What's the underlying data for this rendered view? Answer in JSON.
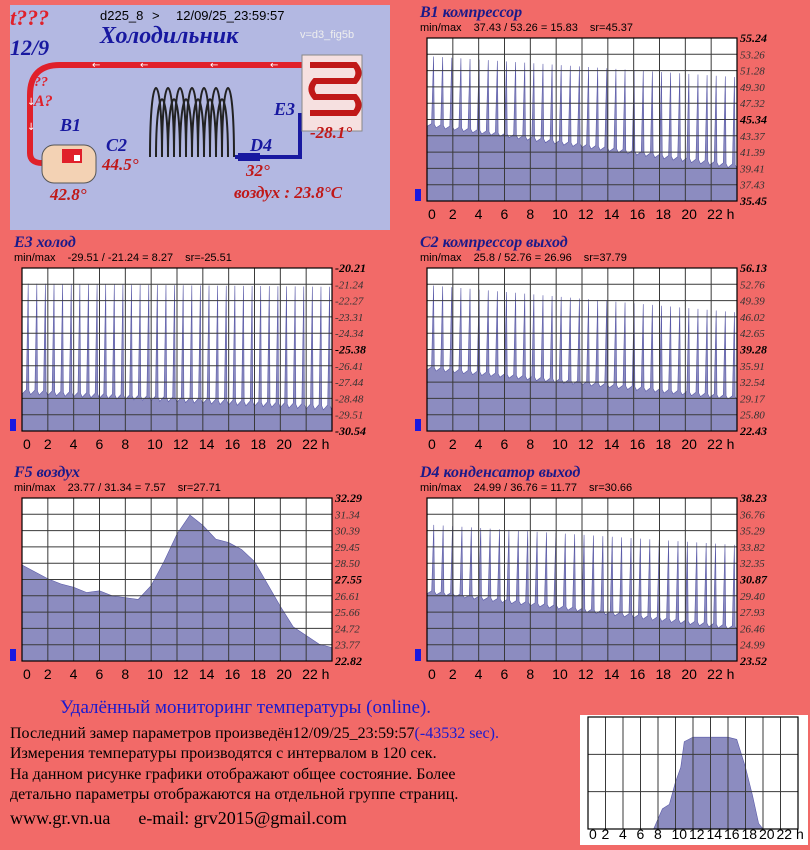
{
  "scheme": {
    "status_code": "t???",
    "date_short": "12/9",
    "device": "d225_8",
    "arrow": ">",
    "timestamp": "12/09/25_23:59:57",
    "title": "Холодильник",
    "version": "v=d3_fig5b",
    "q_marks": "??",
    "a_label": "A?",
    "b1_label": "B1",
    "b1_value": "42.8°",
    "c2_label": "C2",
    "c2_value": "44.5°",
    "d4_label": "D4",
    "d4_value": "32°",
    "e3_label": "E3",
    "e3_value": "-28.1°",
    "air_text": "воздух : 23.8°C"
  },
  "chart_data": [
    {
      "type": "area",
      "title": "B1 компрессор",
      "min_label": "min/max",
      "minmax_text": "37.43 / 53.26 = 15.83",
      "sr_text": "sr=45.37",
      "ylim": [
        35.45,
        55.24
      ],
      "y_ticks": [
        "55.24",
        "53.26",
        "51.28",
        "49.30",
        "47.32",
        "45.34",
        "43.37",
        "41.39",
        "39.41",
        "37.43",
        "35.45"
      ],
      "x_ticks": [
        "0",
        "2",
        "4",
        "6",
        "8",
        "10",
        "12",
        "14",
        "16",
        "18",
        "20",
        "22 h"
      ],
      "grid": true,
      "pattern": "cycle",
      "base_start": 44.5,
      "base_end": 39.5,
      "peak_start": 53.0,
      "peak_end": 50.5,
      "cycles": 34
    },
    {
      "type": "area",
      "title": "E3 холод",
      "min_label": "min/max",
      "minmax_text": "-29.51 / -21.24 = 8.27",
      "sr_text": "sr=-25.51",
      "ylim": [
        -30.54,
        -20.21
      ],
      "y_ticks": [
        "-20.21",
        "-21.24",
        "-22.27",
        "-23.31",
        "-24.34",
        "-25.38",
        "-26.41",
        "-27.44",
        "-28.48",
        "-29.51",
        "-30.54"
      ],
      "x_ticks": [
        "0",
        "2",
        "4",
        "6",
        "8",
        "10",
        "12",
        "14",
        "16",
        "18",
        "20",
        "22 h"
      ],
      "grid": true,
      "pattern": "cycle",
      "base_start": -28.2,
      "base_end": -29.2,
      "peak_start": -21.2,
      "peak_end": -21.4,
      "cycles": 36
    },
    {
      "type": "area",
      "title": "F5 воздух",
      "min_label": "min/max",
      "minmax_text": "23.77 / 31.34 = 7.57",
      "sr_text": "sr=27.71",
      "ylim": [
        22.82,
        32.29
      ],
      "y_ticks": [
        "32.29",
        "31.34",
        "30.39",
        "29.45",
        "28.50",
        "27.55",
        "26.61",
        "25.66",
        "24.72",
        "23.77",
        "22.82"
      ],
      "x_ticks": [
        "0",
        "2",
        "4",
        "6",
        "8",
        "10",
        "12",
        "14",
        "16",
        "18",
        "20",
        "22 h"
      ],
      "grid": true,
      "pattern": "smooth",
      "points": [
        [
          0,
          28.4
        ],
        [
          1,
          28.0
        ],
        [
          2,
          27.6
        ],
        [
          3,
          27.3
        ],
        [
          4,
          27.1
        ],
        [
          5,
          26.8
        ],
        [
          6,
          26.9
        ],
        [
          7,
          26.6
        ],
        [
          8,
          26.5
        ],
        [
          9,
          26.4
        ],
        [
          10,
          27.2
        ],
        [
          11,
          28.6
        ],
        [
          12,
          30.2
        ],
        [
          13,
          31.3
        ],
        [
          14,
          30.7
        ],
        [
          15,
          29.9
        ],
        [
          16,
          29.7
        ],
        [
          17,
          29.3
        ],
        [
          18,
          28.6
        ],
        [
          19,
          27.3
        ],
        [
          20,
          26.0
        ],
        [
          21,
          24.8
        ],
        [
          22,
          24.3
        ],
        [
          23,
          23.8
        ],
        [
          23.98,
          23.6
        ]
      ]
    },
    {
      "type": "area",
      "title": "C2 компрессор выход",
      "min_label": "min/max",
      "minmax_text": "25.8 / 52.76 = 26.96",
      "sr_text": "sr=37.79",
      "ylim": [
        22.43,
        56.13
      ],
      "y_ticks": [
        "56.13",
        "52.76",
        "49.39",
        "46.02",
        "42.65",
        "39.28",
        "35.91",
        "32.54",
        "29.17",
        "25.80",
        "22.43"
      ],
      "x_ticks": [
        "0",
        "2",
        "4",
        "6",
        "8",
        "10",
        "12",
        "14",
        "16",
        "18",
        "20",
        "22 h"
      ],
      "grid": true,
      "pattern": "cycle",
      "base_start": 35.0,
      "base_end": 29.0,
      "peak_start": 52.5,
      "peak_end": 47.0,
      "cycles": 34
    },
    {
      "type": "area",
      "title": "D4 конденсатор выход",
      "min_label": "min/max",
      "minmax_text": "24.99 / 36.76 = 11.77",
      "sr_text": "sr=30.66",
      "ylim": [
        23.52,
        38.23
      ],
      "y_ticks": [
        "38.23",
        "36.76",
        "35.29",
        "33.82",
        "32.35",
        "30.87",
        "29.40",
        "27.93",
        "26.46",
        "24.99",
        "23.52"
      ],
      "x_ticks": [
        "0",
        "2",
        "4",
        "6",
        "8",
        "10",
        "12",
        "14",
        "16",
        "18",
        "20",
        "22 h"
      ],
      "grid": true,
      "pattern": "cycle",
      "base_start": 29.6,
      "base_end": 26.4,
      "peak_start": 35.8,
      "peak_end": 34.0,
      "cycles": 33
    },
    {
      "type": "area",
      "title": "",
      "ylim": [
        0,
        100
      ],
      "x_ticks": [
        "0",
        "2",
        "4",
        "6",
        "8",
        "10",
        "12",
        "14",
        "16",
        "18",
        "20",
        "22 h"
      ],
      "grid": true,
      "pattern": "mini",
      "points": [
        [
          0,
          0
        ],
        [
          7.5,
          0
        ],
        [
          8.5,
          18
        ],
        [
          9.3,
          22
        ],
        [
          10,
          42
        ],
        [
          10.6,
          55
        ],
        [
          11,
          78
        ],
        [
          12,
          82
        ],
        [
          14,
          82
        ],
        [
          16,
          82
        ],
        [
          17,
          80
        ],
        [
          18,
          55
        ],
        [
          18.8,
          30
        ],
        [
          19.5,
          5
        ],
        [
          20,
          0
        ],
        [
          23.98,
          0
        ]
      ]
    }
  ],
  "footer": {
    "title": "Удалённый мониторинг температуры (online).",
    "line1": "Последний замер параметров произведён12/09/25_23:59:57",
    "line1_sec": "(-43532 sec).",
    "line2": "Измерения температуры  производятся с интервалом в 120 сек.",
    "line3": "На данном рисунке графики отображают общее состояние. Более",
    "line4": "детально параметры отображаются на отдельной группе страниц.",
    "site": "www.gr.vn.ua",
    "email": "e-mail: grv2015@gmail.com"
  },
  "colors": {
    "fill": "#8c8cc0",
    "stroke": "#5a5aa8",
    "grid": "#3a3a3a",
    "background": "#f26a68",
    "scheme_bg": "#b3b8e2",
    "hot": "#e0202a",
    "cold": "#1818a0"
  }
}
